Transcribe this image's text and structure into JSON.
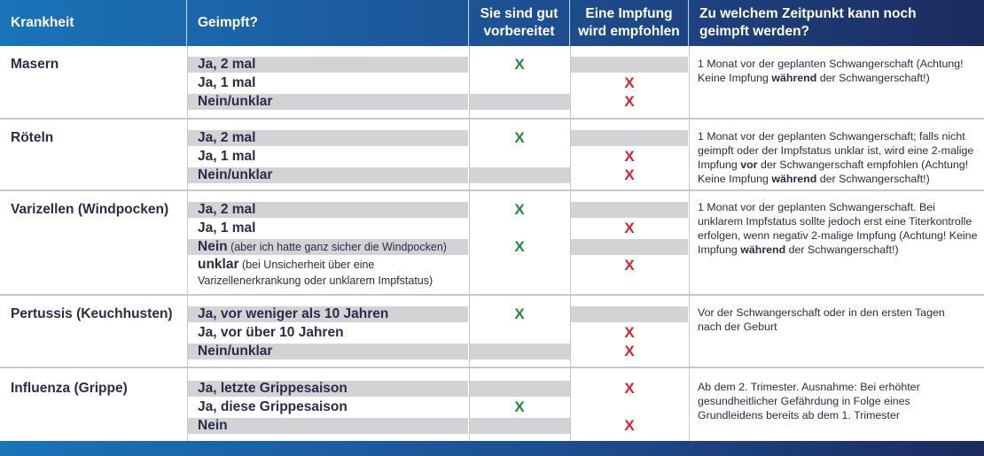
{
  "header": {
    "col1": "Krankheit",
    "col2": "Geimpft?",
    "col3_line1": "Sie sind gut",
    "col3_line2": "vorbereitet",
    "col4_line1": "Eine Impfung",
    "col4_line2": "wird empfohlen",
    "col5_line1": "Zu welchem Zeitpunkt kann noch",
    "col5_line2": "geimpft werden?"
  },
  "marks": {
    "ok": "X",
    "no": "X"
  },
  "colors": {
    "header": "#1d4f91",
    "ok": "#1e8c3a",
    "no": "#d9232e",
    "bar": "#d3d3d6"
  },
  "diseases": [
    {
      "name": "Masern",
      "options": [
        {
          "label": "Ja, 2 mal",
          "status": "ok"
        },
        {
          "label": "Ja, 1 mal",
          "status": "no"
        },
        {
          "label": "Nein/unklar",
          "status": "no"
        }
      ],
      "note": {
        "p1": "1 Monat vor der geplanten Schwangerschaft (Achtung! Keine Impfung ",
        "b1": "während",
        "p2": " der Schwangerschaft!)"
      }
    },
    {
      "name": "Röteln",
      "options": [
        {
          "label": "Ja, 2 mal",
          "status": "ok"
        },
        {
          "label": "Ja, 1 mal",
          "status": "no"
        },
        {
          "label": "Nein/unklar",
          "status": "no"
        }
      ],
      "note": {
        "p1": "1 Monat vor der geplanten Schwangerschaft; falls nicht geimpft oder der Impfstatus unklar ist, wird eine 2-malige Impfung ",
        "b1": "vor",
        "p2": " der Schwangerschaft empfohlen (Achtung! Keine Impfung ",
        "b2": "während",
        "p3": " der Schwangerschaft!)"
      }
    },
    {
      "name": "Varizellen (Windpocken)",
      "options": [
        {
          "label": "Ja, 2 mal",
          "status": "ok"
        },
        {
          "label": "Ja, 1 mal",
          "status": "no"
        },
        {
          "label": "Nein",
          "sub": " (aber ich hatte ganz sicher die Windpocken)",
          "status": "ok"
        },
        {
          "label": "unklar",
          "sub": " (bei Unsicherheit über eine Varizellenerkrankung oder unklarem Impfstatus)",
          "status": "no"
        }
      ],
      "note": {
        "p1": "1 Monat vor der geplanten Schwangerschaft. Bei unklarem Impfstatus sollte jedoch erst eine Titerkontrolle erfolgen, wenn negativ 2-malige Impfung (Achtung! Keine Impfung ",
        "b1": "während",
        "p2": " der Schwangerschaft!)"
      }
    },
    {
      "name": "Pertussis (Keuchhusten)",
      "options": [
        {
          "label": "Ja, vor weniger als 10 Jahren",
          "status": "ok"
        },
        {
          "label": "Ja, vor über 10 Jahren",
          "status": "no"
        },
        {
          "label": "Nein/unklar",
          "status": "no"
        }
      ],
      "note": {
        "p1": "Vor der Schwangerschaft oder in den ersten Tagen nach der Geburt"
      }
    },
    {
      "name": "Influenza (Grippe)",
      "options": [
        {
          "label": "Ja, letzte Grippesaison",
          "status": "no"
        },
        {
          "label": "Ja, diese Grippesaison",
          "status": "ok"
        },
        {
          "label": "Nein",
          "status": "no"
        }
      ],
      "note": {
        "p1": "Ab dem 2. Trimester. Ausnahme: Bei erhöhter gesundheitlicher Gefährdung in Folge eines Grundleidens bereits ab dem 1. Trimester"
      }
    }
  ]
}
